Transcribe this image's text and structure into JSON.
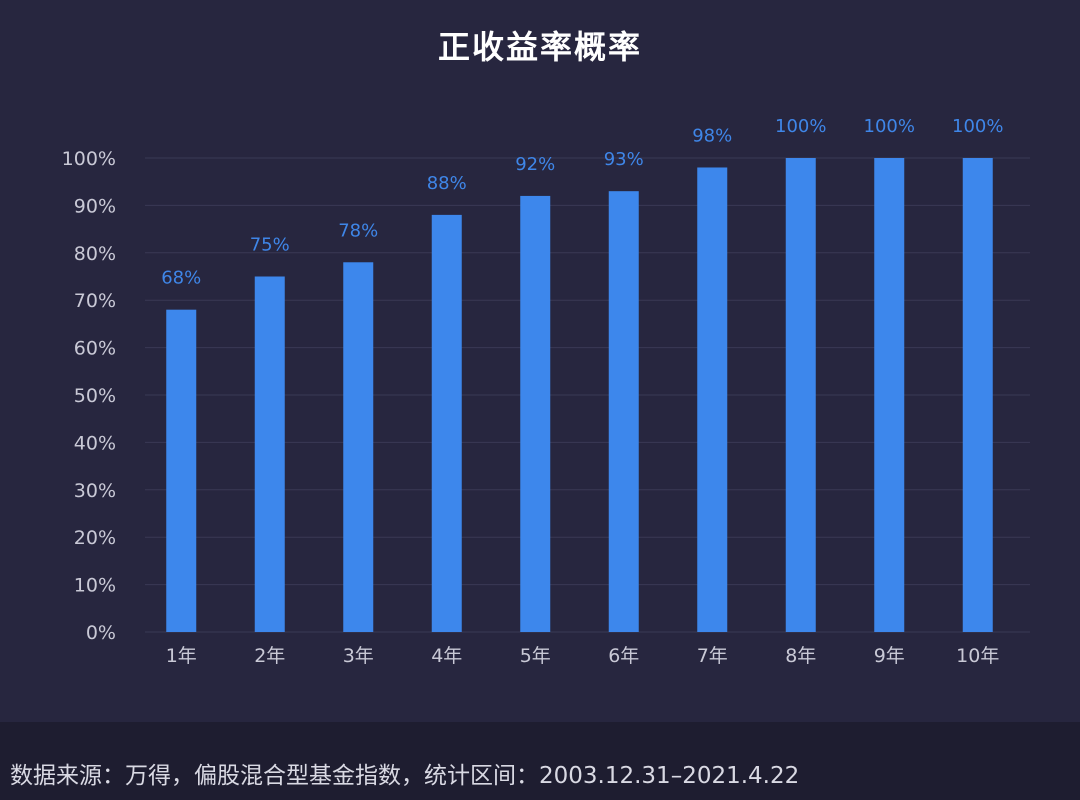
{
  "chart_data": {
    "type": "bar",
    "title": "正收益率概率",
    "categories": [
      "1年",
      "2年",
      "3年",
      "4年",
      "5年",
      "6年",
      "7年",
      "8年",
      "9年",
      "10年"
    ],
    "values": [
      68,
      75,
      78,
      88,
      92,
      93,
      98,
      100,
      100,
      100
    ],
    "value_labels": [
      "68%",
      "75%",
      "78%",
      "88%",
      "92%",
      "93%",
      "98%",
      "100%",
      "100%",
      "100%"
    ],
    "y_ticks": [
      "0%",
      "10%",
      "20%",
      "30%",
      "40%",
      "50%",
      "60%",
      "70%",
      "80%",
      "90%",
      "100%"
    ],
    "ylim": [
      0,
      100
    ],
    "xlabel": "",
    "ylabel": "",
    "grid": true,
    "legend": "none",
    "bar_color": "#3d87ec",
    "label_color": "#3f86e8"
  },
  "footer": {
    "source": "数据来源：万得，偏股混合型基金指数，统计区间：2003.12.31–2021.4.22"
  }
}
